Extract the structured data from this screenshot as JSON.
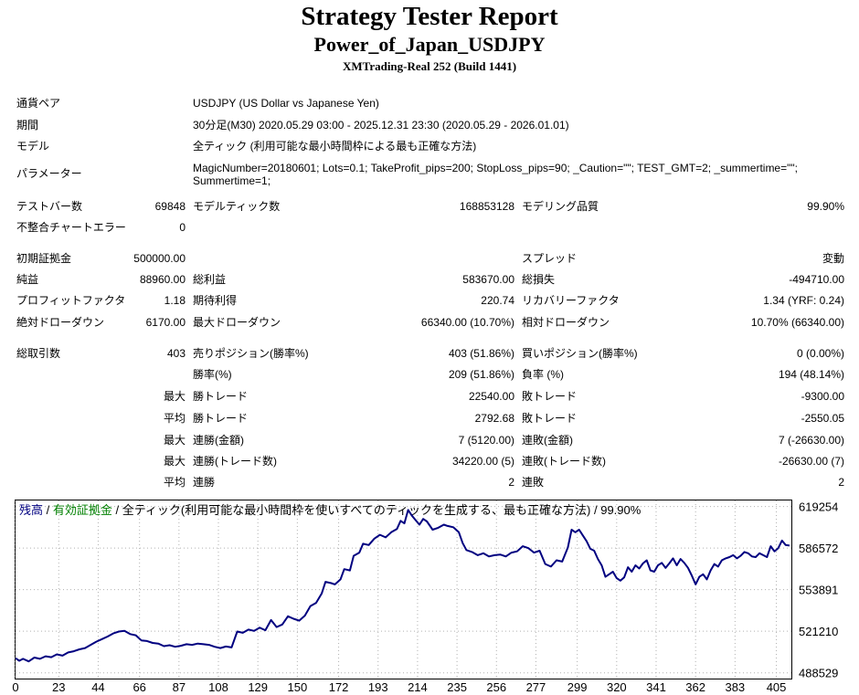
{
  "header": {
    "title": "Strategy Tester Report",
    "ea_name": "Power_of_Japan_USDJPY",
    "server": "XMTrading-Real 252 (Build 1441)"
  },
  "info": {
    "symbol_label": "通貨ペア",
    "symbol": "USDJPY (US Dollar vs Japanese Yen)",
    "period_label": "期間",
    "period": "30分足(M30) 2020.05.29 03:00 - 2025.12.31 23:30 (2020.05.29 - 2026.01.01)",
    "model_label": "モデル",
    "model": "全ティック (利用可能な最小時間枠による最も正確な方法)",
    "params_label": "パラメーター",
    "params": "MagicNumber=20180601; Lots=0.1; TakeProfit_pips=200; StopLoss_pips=90; _Caution=\"\"; TEST_GMT=2; _summertime=\"\"; Summertime=1;"
  },
  "stats": {
    "bars_label": "テストバー数",
    "bars": "69848",
    "ticks_label": "モデルティック数",
    "ticks": "168853128",
    "quality_label": "モデリング品質",
    "quality": "99.90%",
    "mismatch_label": "不整合チャートエラー",
    "mismatch": "0",
    "deposit_label": "初期証拠金",
    "deposit": "500000.00",
    "spread_label": "スプレッド",
    "spread": "変動",
    "net_label": "純益",
    "net": "88960.00",
    "gross_profit_label": "総利益",
    "gross_profit": "583670.00",
    "gross_loss_label": "総損失",
    "gross_loss": "-494710.00",
    "pf_label": "プロフィットファクタ",
    "pf": "1.18",
    "expected_label": "期待利得",
    "expected": "220.74",
    "recovery_label": "リカバリーファクタ",
    "recovery": "1.34 (YRF: 0.24)",
    "abs_dd_label": "絶対ドローダウン",
    "abs_dd": "6170.00",
    "max_dd_label": "最大ドローダウン",
    "max_dd": "66340.00 (10.70%)",
    "rel_dd_label": "相対ドローダウン",
    "rel_dd": "10.70% (66340.00)",
    "trades_label": "総取引数",
    "trades": "403",
    "short_label": "売りポジション(勝率%)",
    "short": "403 (51.86%)",
    "long_label": "買いポジション(勝率%)",
    "long": "0 (0.00%)",
    "win_rate_label": "勝率(%)",
    "win_rate": "209 (51.86%)",
    "loss_rate_label": "負率 (%)",
    "loss_rate": "194 (48.14%)",
    "max_label": "最大",
    "avg_label": "平均",
    "win_trade_label": "勝トレード",
    "loss_trade_label": "敗トレード",
    "max_win_trade": "22540.00",
    "max_loss_trade": "-9300.00",
    "avg_win_trade": "2792.68",
    "avg_loss_trade": "-2550.05",
    "consec_win_amt_label": "連勝(金額)",
    "consec_loss_amt_label": "連敗(金額)",
    "consec_win_amt": "7 (5120.00)",
    "consec_loss_amt": "7 (-26630.00)",
    "consec_win_trd_label": "連勝(トレード数)",
    "consec_loss_trd_label": "連敗(トレード数)",
    "consec_win_trd": "34220.00 (5)",
    "consec_loss_trd": "-26630.00 (7)",
    "avg_consec_win_label": "連勝",
    "avg_consec_win": "2",
    "avg_consec_loss_label": "連敗",
    "avg_consec_loss": "2"
  },
  "chart_legend": {
    "balance": "残高",
    "sep1": " / ",
    "equity": "有効証拠金",
    "rest": " / 全ティック(利用可能な最小時間枠を使いすべてのティックを生成する、最も正確な方法) / 99.90%"
  },
  "chart_data": {
    "type": "line",
    "xlabel": "",
    "ylabel": "",
    "x_ticks": [
      0,
      23,
      44,
      66,
      87,
      108,
      129,
      150,
      172,
      193,
      214,
      235,
      256,
      277,
      299,
      320,
      341,
      362,
      383,
      405
    ],
    "y_ticks": [
      619254,
      586572,
      553891,
      521210,
      488529
    ],
    "xlim": [
      0,
      413
    ],
    "ylim": [
      484000,
      624000
    ],
    "colors": {
      "line": "#000080",
      "balance_text": "#000080",
      "equity_text": "#008000",
      "grid": "#b0b0b0"
    },
    "series": [
      {
        "name": "残高",
        "points": [
          [
            0,
            500000
          ],
          [
            2,
            498000
          ],
          [
            4,
            499500
          ],
          [
            7,
            497500
          ],
          [
            10,
            500500
          ],
          [
            13,
            499500
          ],
          [
            16,
            501500
          ],
          [
            19,
            500800
          ],
          [
            22,
            503000
          ],
          [
            25,
            502000
          ],
          [
            28,
            504500
          ],
          [
            31,
            505500
          ],
          [
            34,
            507000
          ],
          [
            37,
            508000
          ],
          [
            40,
            510500
          ],
          [
            43,
            513000
          ],
          [
            46,
            515000
          ],
          [
            49,
            517000
          ],
          [
            52,
            519500
          ],
          [
            55,
            521000
          ],
          [
            58,
            521500
          ],
          [
            61,
            519000
          ],
          [
            64,
            518000
          ],
          [
            67,
            514000
          ],
          [
            70,
            513500
          ],
          [
            73,
            512000
          ],
          [
            76,
            511500
          ],
          [
            79,
            509500
          ],
          [
            82,
            510200
          ],
          [
            85,
            509000
          ],
          [
            88,
            509800
          ],
          [
            91,
            511000
          ],
          [
            94,
            510500
          ],
          [
            97,
            511500
          ],
          [
            100,
            511000
          ],
          [
            103,
            510500
          ],
          [
            106,
            509000
          ],
          [
            109,
            508000
          ],
          [
            112,
            509200
          ],
          [
            115,
            508500
          ],
          [
            118,
            521000
          ],
          [
            121,
            520000
          ],
          [
            124,
            522500
          ],
          [
            127,
            521500
          ],
          [
            130,
            524000
          ],
          [
            133,
            522000
          ],
          [
            136,
            530000
          ],
          [
            139,
            524500
          ],
          [
            142,
            526500
          ],
          [
            145,
            533000
          ],
          [
            148,
            531000
          ],
          [
            151,
            529500
          ],
          [
            154,
            533500
          ],
          [
            157,
            541000
          ],
          [
            160,
            543500
          ],
          [
            163,
            551000
          ],
          [
            165,
            560000
          ],
          [
            168,
            559000
          ],
          [
            170,
            558000
          ],
          [
            173,
            562000
          ],
          [
            175,
            570000
          ],
          [
            178,
            569000
          ],
          [
            180,
            580500
          ],
          [
            183,
            583000
          ],
          [
            185,
            590000
          ],
          [
            188,
            589000
          ],
          [
            191,
            594000
          ],
          [
            194,
            597000
          ],
          [
            197,
            595000
          ],
          [
            200,
            599000
          ],
          [
            203,
            601500
          ],
          [
            205,
            608000
          ],
          [
            207,
            606000
          ],
          [
            209,
            616500
          ],
          [
            211,
            612000
          ],
          [
            213,
            608500
          ],
          [
            215,
            605000
          ],
          [
            217,
            609500
          ],
          [
            219,
            607500
          ],
          [
            222,
            601000
          ],
          [
            225,
            602500
          ],
          [
            228,
            605000
          ],
          [
            230,
            604000
          ],
          [
            233,
            603000
          ],
          [
            236,
            599000
          ],
          [
            238,
            590500
          ],
          [
            240,
            585000
          ],
          [
            243,
            583500
          ],
          [
            246,
            581000
          ],
          [
            249,
            582500
          ],
          [
            252,
            580000
          ],
          [
            255,
            581000
          ],
          [
            258,
            581500
          ],
          [
            261,
            580000
          ],
          [
            264,
            583000
          ],
          [
            267,
            584000
          ],
          [
            270,
            588000
          ],
          [
            273,
            586500
          ],
          [
            276,
            583000
          ],
          [
            279,
            584500
          ],
          [
            282,
            574000
          ],
          [
            285,
            572000
          ],
          [
            288,
            577000
          ],
          [
            291,
            576000
          ],
          [
            294,
            587000
          ],
          [
            296,
            601000
          ],
          [
            298,
            599000
          ],
          [
            300,
            601000
          ],
          [
            302,
            596500
          ],
          [
            304,
            592000
          ],
          [
            306,
            586000
          ],
          [
            308,
            584500
          ],
          [
            310,
            578000
          ],
          [
            312,
            573000
          ],
          [
            314,
            564000
          ],
          [
            316,
            566000
          ],
          [
            318,
            568000
          ],
          [
            320,
            563000
          ],
          [
            322,
            561000
          ],
          [
            324,
            563500
          ],
          [
            326,
            571500
          ],
          [
            328,
            568000
          ],
          [
            330,
            573000
          ],
          [
            332,
            570500
          ],
          [
            334,
            574500
          ],
          [
            336,
            577000
          ],
          [
            338,
            569000
          ],
          [
            340,
            568000
          ],
          [
            342,
            573000
          ],
          [
            344,
            575000
          ],
          [
            346,
            571000
          ],
          [
            348,
            574500
          ],
          [
            350,
            578500
          ],
          [
            352,
            573000
          ],
          [
            354,
            578000
          ],
          [
            356,
            575000
          ],
          [
            358,
            571000
          ],
          [
            360,
            565000
          ],
          [
            362,
            558000
          ],
          [
            364,
            564000
          ],
          [
            366,
            566000
          ],
          [
            368,
            562000
          ],
          [
            370,
            569000
          ],
          [
            372,
            574000
          ],
          [
            374,
            572000
          ],
          [
            376,
            577000
          ],
          [
            378,
            578500
          ],
          [
            380,
            579500
          ],
          [
            382,
            581000
          ],
          [
            384,
            578500
          ],
          [
            386,
            580500
          ],
          [
            388,
            583500
          ],
          [
            390,
            582500
          ],
          [
            392,
            580000
          ],
          [
            394,
            579500
          ],
          [
            396,
            582500
          ],
          [
            398,
            581000
          ],
          [
            400,
            579500
          ],
          [
            402,
            588000
          ],
          [
            404,
            584000
          ],
          [
            406,
            586500
          ],
          [
            408,
            592500
          ],
          [
            410,
            589000
          ],
          [
            412,
            588500
          ]
        ]
      }
    ]
  }
}
